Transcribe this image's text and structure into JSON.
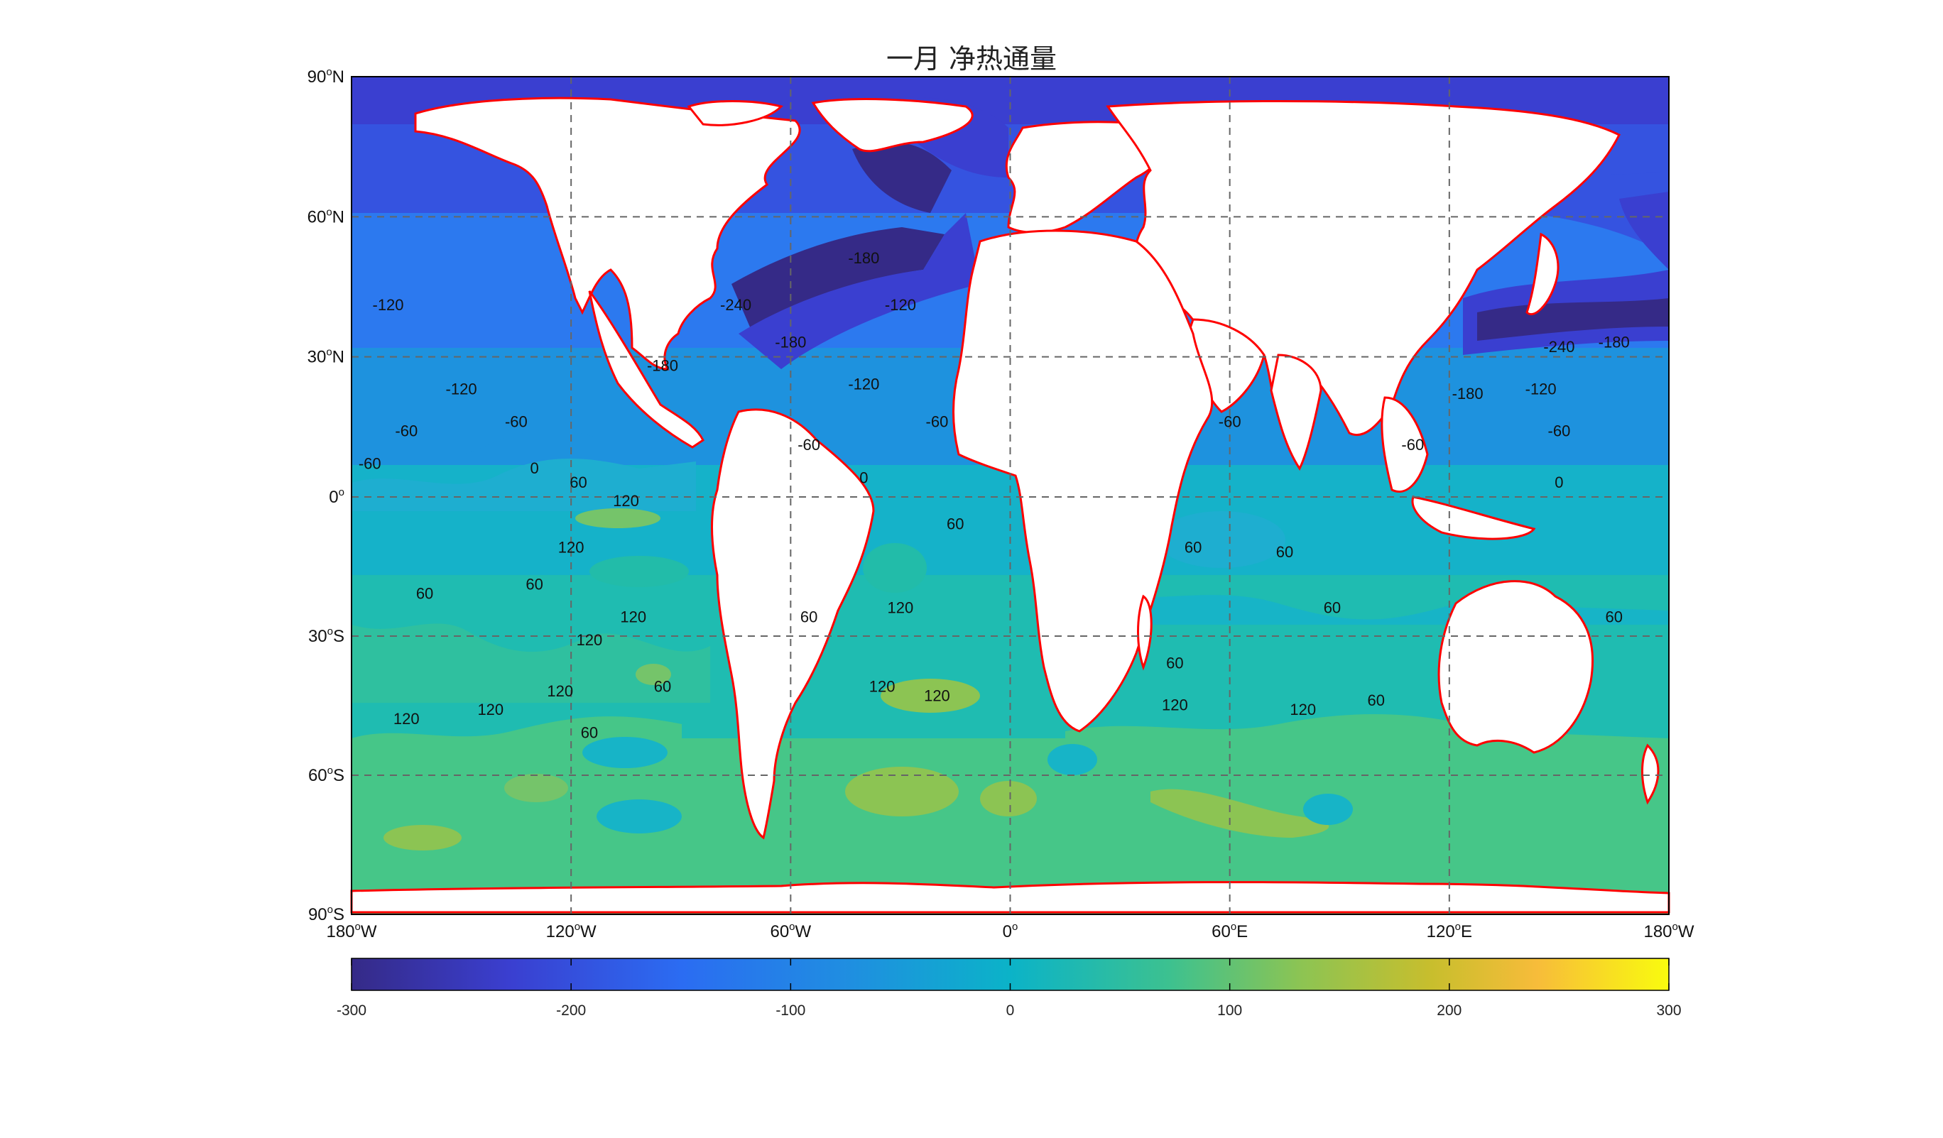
{
  "title": "一月 净热通量",
  "map": {
    "lat_ticks": [
      {
        "lat": 90,
        "deg": "90",
        "hemi": "N"
      },
      {
        "lat": 60,
        "deg": "60",
        "hemi": "N"
      },
      {
        "lat": 30,
        "deg": "30",
        "hemi": "N"
      },
      {
        "lat": 0,
        "deg": "0",
        "hemi": ""
      },
      {
        "lat": -30,
        "deg": "30",
        "hemi": "S"
      },
      {
        "lat": -60,
        "deg": "60",
        "hemi": "S"
      },
      {
        "lat": -90,
        "deg": "90",
        "hemi": "S"
      }
    ],
    "lon_ticks": [
      {
        "lon": -180,
        "deg": "180",
        "hemi": "W"
      },
      {
        "lon": -120,
        "deg": "120",
        "hemi": "W"
      },
      {
        "lon": -60,
        "deg": "60",
        "hemi": "W"
      },
      {
        "lon": 0,
        "deg": "0",
        "hemi": ""
      },
      {
        "lon": 60,
        "deg": "60",
        "hemi": "E"
      },
      {
        "lon": 120,
        "deg": "120",
        "hemi": "E"
      },
      {
        "lon": 180,
        "deg": "180",
        "hemi": "W"
      }
    ],
    "degree_symbol": "o",
    "coastline_color": "#ff0000",
    "gridline_style": "dashed",
    "contour_labels": [
      {
        "text": "-120",
        "lon": -170,
        "lat": 40
      },
      {
        "text": "-120",
        "lon": -150,
        "lat": 22
      },
      {
        "text": "-60",
        "lon": -135,
        "lat": 15
      },
      {
        "text": "-60",
        "lon": -165,
        "lat": 13
      },
      {
        "text": "-60",
        "lon": -175,
        "lat": 6
      },
      {
        "text": "0",
        "lon": -130,
        "lat": 5
      },
      {
        "text": "60",
        "lon": -118,
        "lat": 2
      },
      {
        "text": "120",
        "lon": -105,
        "lat": -2
      },
      {
        "text": "120",
        "lon": -120,
        "lat": -12
      },
      {
        "text": "60",
        "lon": -160,
        "lat": -22
      },
      {
        "text": "60",
        "lon": -130,
        "lat": -20
      },
      {
        "text": "120",
        "lon": -103,
        "lat": -27
      },
      {
        "text": "120",
        "lon": -115,
        "lat": -32
      },
      {
        "text": "60",
        "lon": -95,
        "lat": -42
      },
      {
        "text": "120",
        "lon": -123,
        "lat": -43
      },
      {
        "text": "120",
        "lon": -165,
        "lat": -49
      },
      {
        "text": "120",
        "lon": -142,
        "lat": -47
      },
      {
        "text": "60",
        "lon": -115,
        "lat": -52
      },
      {
        "text": "-180",
        "lon": -95,
        "lat": 27
      },
      {
        "text": "-120",
        "lon": -40,
        "lat": 23
      },
      {
        "text": "-180",
        "lon": -60,
        "lat": 32
      },
      {
        "text": "-240",
        "lon": -75,
        "lat": 40
      },
      {
        "text": "-120",
        "lon": -30,
        "lat": 40
      },
      {
        "text": "-180",
        "lon": -40,
        "lat": 50
      },
      {
        "text": "-60",
        "lon": -20,
        "lat": 15
      },
      {
        "text": "-60",
        "lon": -55,
        "lat": 10
      },
      {
        "text": "0",
        "lon": -40,
        "lat": 3
      },
      {
        "text": "60",
        "lon": -15,
        "lat": -7
      },
      {
        "text": "60",
        "lon": -55,
        "lat": -27
      },
      {
        "text": "120",
        "lon": -30,
        "lat": -25
      },
      {
        "text": "120",
        "lon": -35,
        "lat": -42
      },
      {
        "text": "120",
        "lon": -20,
        "lat": -44
      },
      {
        "text": "-60",
        "lon": 60,
        "lat": 15
      },
      {
        "text": "-60",
        "lon": 110,
        "lat": 10
      },
      {
        "text": "-120",
        "lon": 145,
        "lat": 22
      },
      {
        "text": "-180",
        "lon": 125,
        "lat": 21
      },
      {
        "text": "-240",
        "lon": 150,
        "lat": 31
      },
      {
        "text": "-180",
        "lon": 165,
        "lat": 32
      },
      {
        "text": "-60",
        "lon": 150,
        "lat": 13
      },
      {
        "text": "0",
        "lon": 150,
        "lat": 2
      },
      {
        "text": "60",
        "lon": 75,
        "lat": -13
      },
      {
        "text": "60",
        "lon": 50,
        "lat": -12
      },
      {
        "text": "60",
        "lon": 88,
        "lat": -25
      },
      {
        "text": "60",
        "lon": 45,
        "lat": -37
      },
      {
        "text": "120",
        "lon": 45,
        "lat": -46
      },
      {
        "text": "120",
        "lon": 80,
        "lat": -47
      },
      {
        "text": "60",
        "lon": 100,
        "lat": -45
      },
      {
        "text": "60",
        "lon": 165,
        "lat": -27
      }
    ]
  },
  "colorbar": {
    "min": -300,
    "max": 300,
    "colormap": "parula",
    "ticks": [
      "-300",
      "-200",
      "-100",
      "0",
      "100",
      "200",
      "300"
    ]
  }
}
